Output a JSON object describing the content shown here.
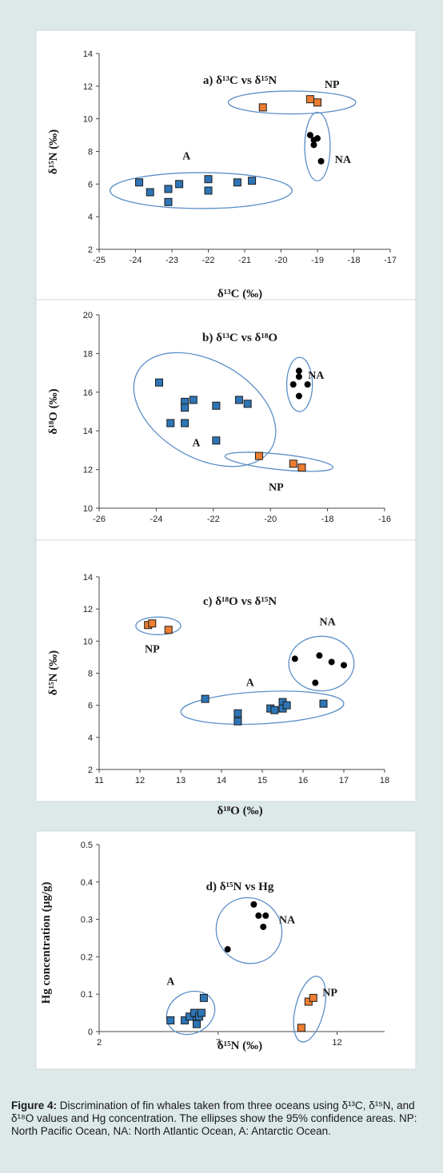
{
  "caption": {
    "label": "Figure 4:",
    "text": "Discrimination of fin whales taken from three oceans using δ¹³C, δ¹⁵N, and δ¹⁸O values and Hg concentration. The ellipses show the 95% confidence areas. NP: North Pacific Ocean, NA: North Atlantic Ocean, A: Antarctic Ocean."
  },
  "colors": {
    "background": "#dde9e8",
    "plot_bg": "#ffffff",
    "A_square": "#2e75b6",
    "NP_square": "#ed7d31",
    "NA_dot": "#000000",
    "ellipse": "#5b8fc7"
  },
  "chart_data": [
    {
      "type": "scatter",
      "title": "a) δ¹³C vs δ¹⁵N",
      "xlabel": "δ¹³C (‰)",
      "ylabel": "δ¹⁵N (‰)",
      "xlim": [
        -25,
        -17
      ],
      "ylim": [
        2,
        14
      ],
      "xticks": [
        -25,
        -24,
        -23,
        -22,
        -21,
        -20,
        -19,
        -18,
        -17
      ],
      "yticks": [
        2,
        4,
        6,
        8,
        10,
        12,
        14
      ],
      "series": [
        {
          "name": "A",
          "marker": "blue-square",
          "points": [
            [
              -23.9,
              6.1
            ],
            [
              -23.6,
              5.5
            ],
            [
              -23.1,
              5.7
            ],
            [
              -22.8,
              6.0
            ],
            [
              -23.1,
              4.9
            ],
            [
              -22.0,
              6.3
            ],
            [
              -22.0,
              5.6
            ],
            [
              -21.2,
              6.1
            ],
            [
              -20.8,
              6.2
            ]
          ]
        },
        {
          "name": "NP",
          "marker": "orange-square",
          "points": [
            [
              -20.5,
              10.7
            ],
            [
              -19.2,
              11.2
            ],
            [
              -19.0,
              11.0
            ]
          ]
        },
        {
          "name": "NA",
          "marker": "black-dot",
          "points": [
            [
              -19.2,
              9.0
            ],
            [
              -19.1,
              8.7
            ],
            [
              -19.1,
              8.4
            ],
            [
              -19.0,
              8.8
            ],
            [
              -18.9,
              7.4
            ]
          ]
        }
      ],
      "group_labels": [
        {
          "text": "A",
          "x": -22.6,
          "y": 7.5
        },
        {
          "text": "NP",
          "x": -18.6,
          "y": 11.9
        },
        {
          "text": "NA",
          "x": -18.3,
          "y": 7.3
        }
      ],
      "ellipses": [
        {
          "group": "A",
          "cx": -22.2,
          "cy": 5.6,
          "rx": 2.5,
          "ry": 1.1,
          "angle": 0
        },
        {
          "group": "NP",
          "cx": -19.7,
          "cy": 11.0,
          "rx": 1.75,
          "ry": 0.7,
          "angle": 0
        },
        {
          "group": "NA",
          "cx": -19.0,
          "cy": 8.3,
          "rx": 0.35,
          "ry": 2.1,
          "angle": 0
        }
      ]
    },
    {
      "type": "scatter",
      "title": "b) δ¹³C vs δ¹⁸O",
      "xlabel": "δ¹³C (‰)",
      "ylabel": "δ¹⁸O (‰)",
      "xlim": [
        -26,
        -16
      ],
      "ylim": [
        10,
        20
      ],
      "xticks": [
        -26,
        -24,
        -22,
        -20,
        -18,
        -16
      ],
      "yticks": [
        10,
        12,
        14,
        16,
        18,
        20
      ],
      "series": [
        {
          "name": "A",
          "marker": "blue-square",
          "points": [
            [
              -23.9,
              16.5
            ],
            [
              -23.5,
              14.4
            ],
            [
              -23.0,
              15.5
            ],
            [
              -23.0,
              15.2
            ],
            [
              -22.7,
              15.6
            ],
            [
              -23.0,
              14.4
            ],
            [
              -21.9,
              15.3
            ],
            [
              -21.9,
              13.5
            ],
            [
              -21.1,
              15.6
            ],
            [
              -20.8,
              15.4
            ]
          ]
        },
        {
          "name": "NP",
          "marker": "orange-square",
          "points": [
            [
              -20.4,
              12.7
            ],
            [
              -19.2,
              12.3
            ],
            [
              -18.9,
              12.1
            ]
          ]
        },
        {
          "name": "NA",
          "marker": "black-dot",
          "points": [
            [
              -19.0,
              17.1
            ],
            [
              -19.0,
              16.8
            ],
            [
              -19.2,
              16.4
            ],
            [
              -18.7,
              16.4
            ],
            [
              -19.0,
              15.8
            ]
          ]
        }
      ],
      "group_labels": [
        {
          "text": "A",
          "x": -22.6,
          "y": 13.2
        },
        {
          "text": "NP",
          "x": -19.8,
          "y": 10.9
        },
        {
          "text": "NA",
          "x": -18.4,
          "y": 16.7
        }
      ],
      "ellipses": [
        {
          "group": "A",
          "cx": -22.3,
          "cy": 15.1,
          "rx": 2.7,
          "ry": 2.5,
          "angle": 30
        },
        {
          "group": "NP",
          "cx": -19.7,
          "cy": 12.4,
          "rx": 1.9,
          "ry": 0.4,
          "angle": 6
        },
        {
          "group": "NA",
          "cx": -18.98,
          "cy": 16.4,
          "rx": 0.45,
          "ry": 1.4,
          "angle": 0
        }
      ]
    },
    {
      "type": "scatter",
      "title": "c) δ¹⁸O vs δ¹⁵N",
      "xlabel": "δ¹⁸O (‰)",
      "ylabel": "δ¹⁵N (‰)",
      "xlim": [
        11,
        18
      ],
      "ylim": [
        2,
        14
      ],
      "xticks": [
        11,
        12,
        13,
        14,
        15,
        16,
        17,
        18
      ],
      "yticks": [
        2,
        4,
        6,
        8,
        10,
        12,
        14
      ],
      "series": [
        {
          "name": "A",
          "marker": "blue-square",
          "points": [
            [
              13.6,
              6.4
            ],
            [
              14.4,
              5.5
            ],
            [
              14.4,
              5.0
            ],
            [
              15.2,
              5.8
            ],
            [
              15.3,
              5.7
            ],
            [
              15.5,
              6.2
            ],
            [
              15.5,
              5.8
            ],
            [
              15.6,
              6.0
            ],
            [
              16.5,
              6.1
            ]
          ]
        },
        {
          "name": "NP",
          "marker": "orange-square",
          "points": [
            [
              12.2,
              11.0
            ],
            [
              12.3,
              11.1
            ],
            [
              12.7,
              10.7
            ]
          ]
        },
        {
          "name": "NA",
          "marker": "black-dot",
          "points": [
            [
              15.8,
              8.9
            ],
            [
              16.4,
              9.1
            ],
            [
              16.7,
              8.7
            ],
            [
              17.0,
              8.5
            ],
            [
              16.3,
              7.4
            ]
          ]
        }
      ],
      "group_labels": [
        {
          "text": "A",
          "x": 14.7,
          "y": 7.2
        },
        {
          "text": "NP",
          "x": 12.3,
          "y": 9.3
        },
        {
          "text": "NA",
          "x": 16.6,
          "y": 11.0
        }
      ],
      "ellipses": [
        {
          "group": "A",
          "cx": 15.0,
          "cy": 5.85,
          "rx": 2.0,
          "ry": 1.0,
          "angle": -3
        },
        {
          "group": "NP",
          "cx": 12.45,
          "cy": 10.95,
          "rx": 0.55,
          "ry": 0.55,
          "angle": 0
        },
        {
          "group": "NA",
          "cx": 16.45,
          "cy": 8.6,
          "rx": 0.8,
          "ry": 1.7,
          "angle": 0
        }
      ]
    },
    {
      "type": "scatter",
      "title": "d) δ¹⁵N vs Hg",
      "xlabel": "δ¹⁵N (‰)",
      "ylabel": "Hg concentration (µg/g)",
      "xlim": [
        2,
        14
      ],
      "ylim": [
        0,
        0.5
      ],
      "xticks": [
        2,
        7,
        12
      ],
      "yticks": [
        0,
        0.1,
        0.2,
        0.3,
        0.4,
        0.5
      ],
      "series": [
        {
          "name": "A",
          "marker": "blue-square",
          "points": [
            [
              5.0,
              0.03
            ],
            [
              5.6,
              0.03
            ],
            [
              5.8,
              0.04
            ],
            [
              6.0,
              0.05
            ],
            [
              6.1,
              0.03
            ],
            [
              6.2,
              0.04
            ],
            [
              6.3,
              0.05
            ],
            [
              6.4,
              0.09
            ],
            [
              6.1,
              0.02
            ]
          ]
        },
        {
          "name": "NP",
          "marker": "orange-square",
          "points": [
            [
              10.5,
              0.01
            ],
            [
              10.8,
              0.08
            ],
            [
              11.0,
              0.09
            ]
          ]
        },
        {
          "name": "NA",
          "marker": "black-dot",
          "points": [
            [
              7.4,
              0.22
            ],
            [
              8.5,
              0.34
            ],
            [
              8.7,
              0.31
            ],
            [
              9.0,
              0.31
            ],
            [
              8.9,
              0.28
            ]
          ]
        }
      ],
      "group_labels": [
        {
          "text": "A",
          "x": 5.0,
          "y": 0.125
        },
        {
          "text": "NP",
          "x": 11.7,
          "y": 0.095
        },
        {
          "text": "NA",
          "x": 9.9,
          "y": 0.29
        }
      ],
      "ellipses": [
        {
          "group": "A",
          "cx": 5.85,
          "cy": 0.05,
          "rx": 1.05,
          "ry": 0.055,
          "angle": -28
        },
        {
          "group": "NP",
          "cx": 10.85,
          "cy": 0.06,
          "rx": 0.6,
          "ry": 0.09,
          "angle": 14
        },
        {
          "group": "NA",
          "cx": 8.3,
          "cy": 0.27,
          "rx": 1.35,
          "ry": 0.09,
          "angle": -44
        }
      ]
    }
  ]
}
